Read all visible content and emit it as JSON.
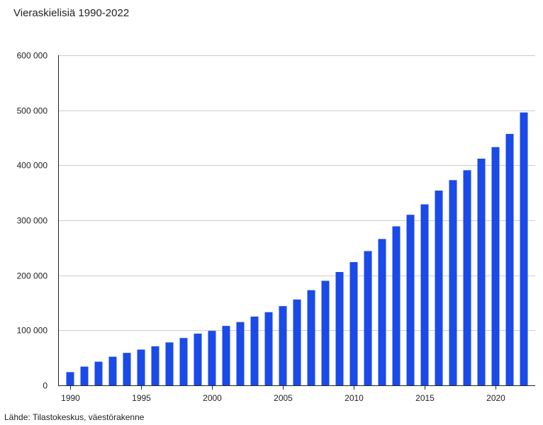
{
  "title": "Vieraskielisiä 1990-2022",
  "source": "Lähde: Tilastokeskus, väestörakenne",
  "colors": {
    "bar": "#1a4ae8",
    "gridline": "#cccccc",
    "axis": "#222222"
  },
  "chart_data": {
    "type": "bar",
    "title": "Vieraskielisiä 1990-2022",
    "xlabel": "",
    "ylabel": "",
    "categories": [
      1990,
      1991,
      1992,
      1993,
      1994,
      1995,
      1996,
      1997,
      1998,
      1999,
      2000,
      2001,
      2002,
      2003,
      2004,
      2005,
      2006,
      2007,
      2008,
      2009,
      2010,
      2011,
      2012,
      2013,
      2014,
      2015,
      2016,
      2017,
      2018,
      2019,
      2020,
      2021,
      2022
    ],
    "values": [
      24000,
      34000,
      43000,
      52000,
      59000,
      65000,
      71000,
      78000,
      86000,
      94000,
      99000,
      108000,
      115000,
      125000,
      133000,
      144000,
      156000,
      173000,
      190000,
      206000,
      224000,
      244000,
      266000,
      289000,
      310000,
      329000,
      354000,
      373000,
      391000,
      412000,
      433000,
      457000,
      496000
    ],
    "ylim": [
      0,
      600000
    ],
    "yticks": [
      0,
      100000,
      200000,
      300000,
      400000,
      500000,
      600000
    ],
    "ytick_labels": [
      "0",
      "100 000",
      "200 000",
      "300 000",
      "400 000",
      "500 000",
      "600 000"
    ],
    "xticks": [
      1990,
      1995,
      2000,
      2005,
      2010,
      2015,
      2020
    ],
    "xtick_labels": [
      "1990",
      "1995",
      "2000",
      "2005",
      "2010",
      "2015",
      "2020"
    ],
    "grid": true,
    "legend": "none"
  }
}
